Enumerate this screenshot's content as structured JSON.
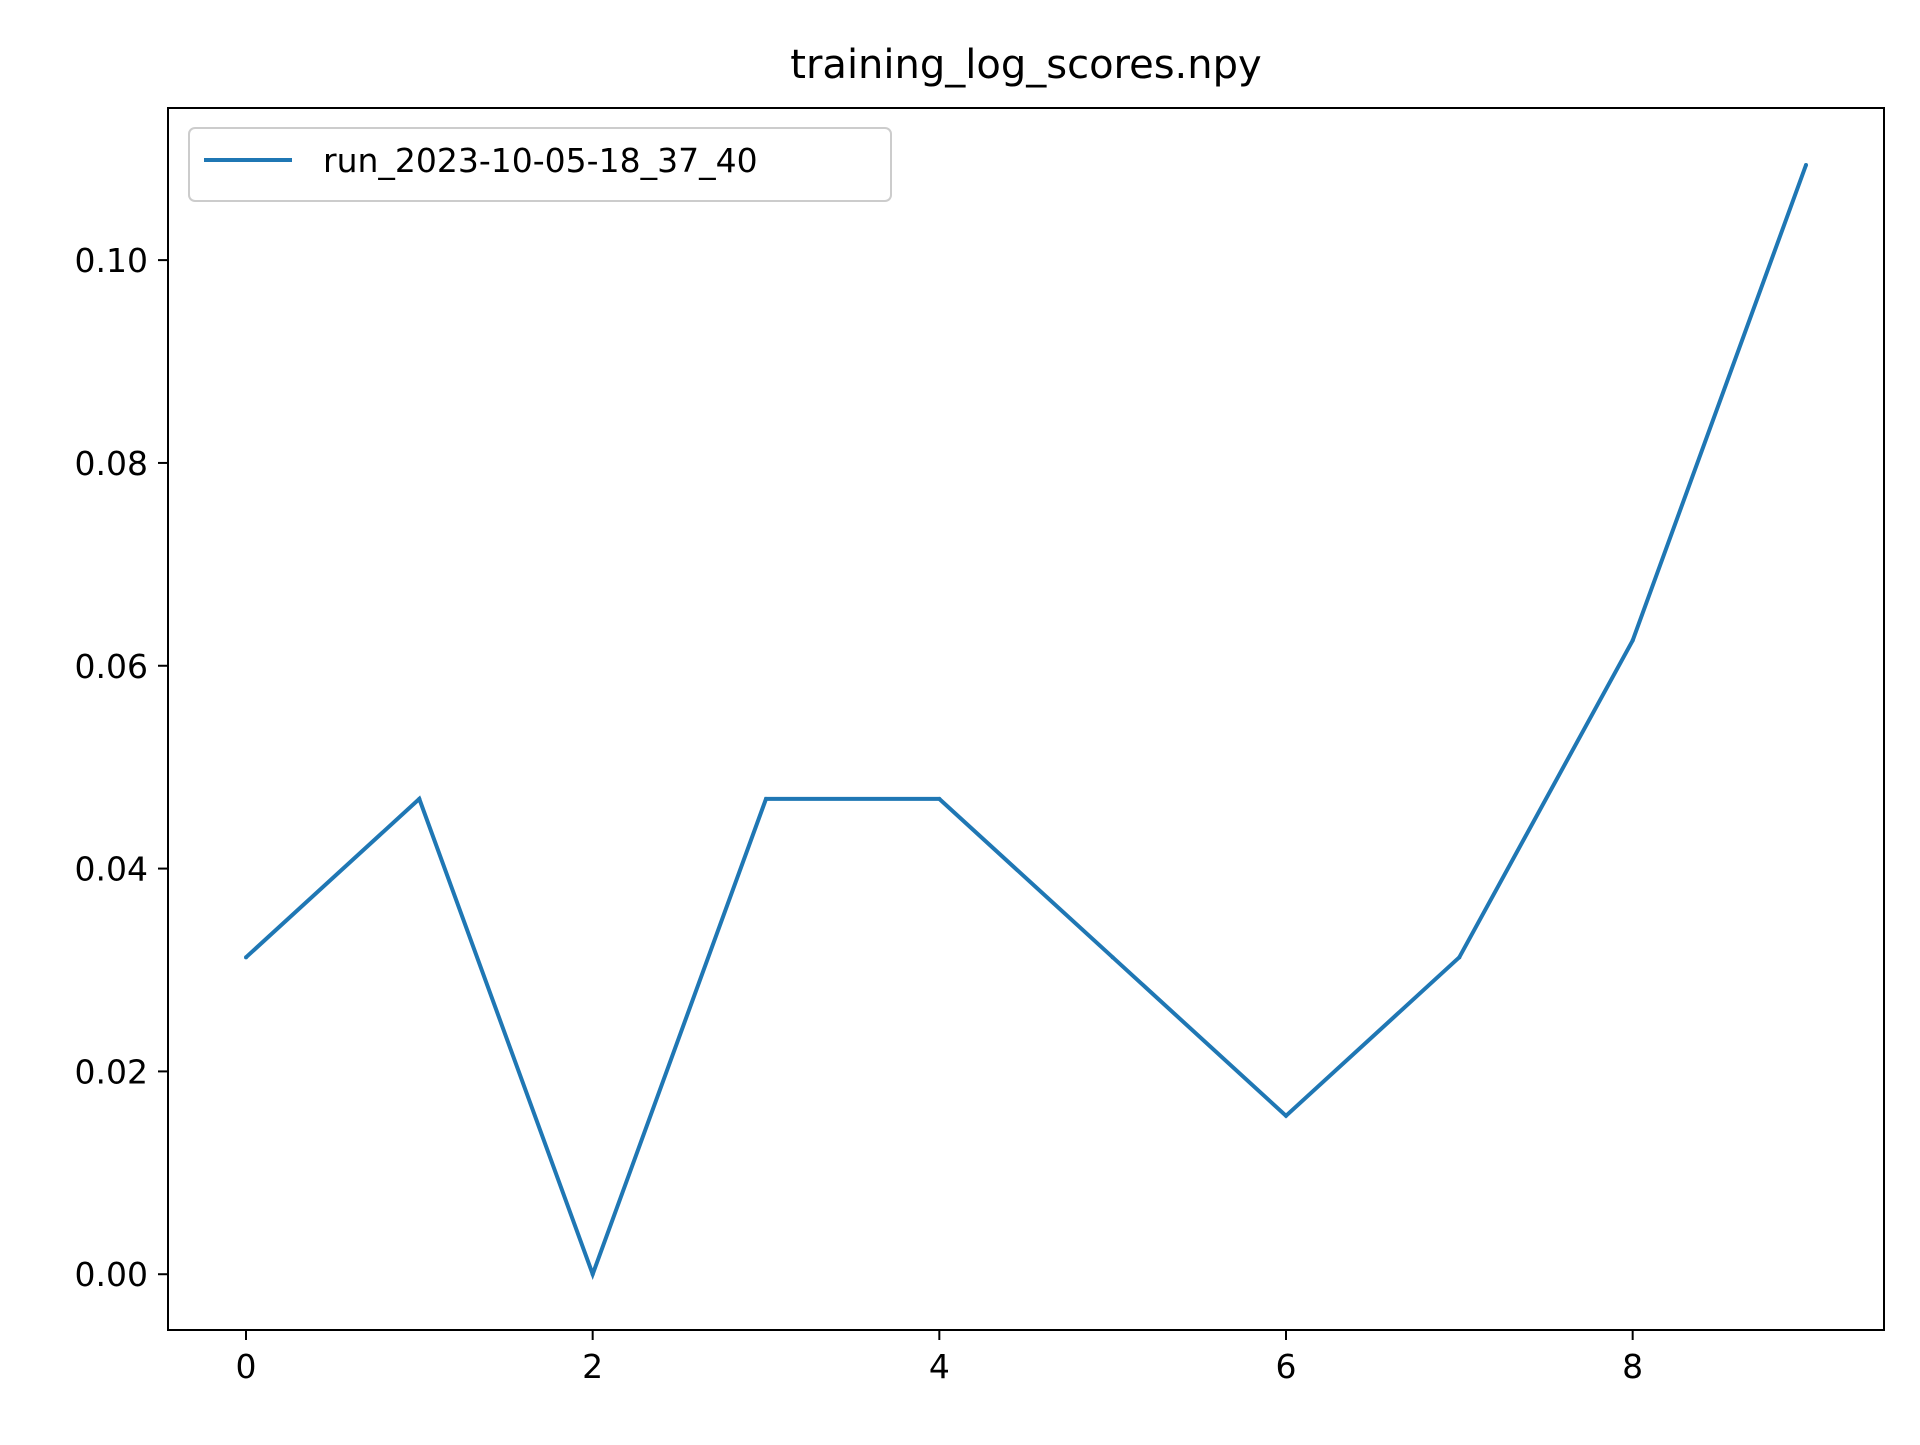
{
  "chart_data": {
    "type": "line",
    "title": "training_log_scores.npy",
    "xlabel": "",
    "ylabel": "",
    "x": [
      0,
      1,
      2,
      3,
      4,
      5,
      6,
      7,
      8,
      9
    ],
    "series": [
      {
        "name": "run_2023-10-05-18_37_40",
        "color": "#1f77b4",
        "values": [
          0.03125,
          0.046875,
          0.0,
          0.046875,
          0.046875,
          0.03125,
          0.015625,
          0.03125,
          0.0625,
          0.109375
        ]
      }
    ],
    "xlim": [
      -0.45,
      9.45
    ],
    "ylim": [
      -0.0055,
      0.115
    ],
    "xticks": [
      0,
      2,
      4,
      6,
      8
    ],
    "xtick_labels": [
      "0",
      "2",
      "4",
      "6",
      "8"
    ],
    "yticks": [
      0.0,
      0.02,
      0.04,
      0.06,
      0.08,
      0.1
    ],
    "ytick_labels": [
      "0.00",
      "0.02",
      "0.04",
      "0.06",
      "0.08",
      "0.10"
    ],
    "grid": false,
    "legend_position": "upper-left"
  }
}
